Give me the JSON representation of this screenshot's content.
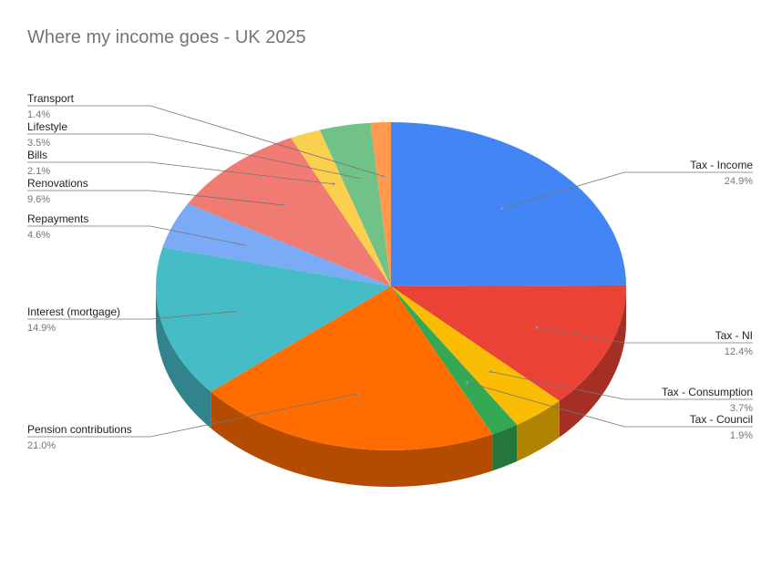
{
  "chart_data": {
    "type": "pie",
    "title": "Where my income goes - UK 2025",
    "three_d": true,
    "slices": [
      {
        "label": "Tax - Income",
        "value": 24.9,
        "pct_label": "24.9%",
        "color": "#4285f4",
        "side": "right"
      },
      {
        "label": "Tax - NI",
        "value": 12.4,
        "pct_label": "12.4%",
        "color": "#ea4335",
        "side": "right"
      },
      {
        "label": "Tax - Consumption",
        "value": 3.7,
        "pct_label": "3.7%",
        "color": "#fbbc04",
        "side": "right"
      },
      {
        "label": "Tax - Council",
        "value": 1.9,
        "pct_label": "1.9%",
        "color": "#34a853",
        "side": "right"
      },
      {
        "label": "Pension contributions",
        "value": 21.0,
        "pct_label": "21.0%",
        "color": "#ff6d01",
        "side": "left"
      },
      {
        "label": "Interest (mortgage)",
        "value": 14.9,
        "pct_label": "14.9%",
        "color": "#46bdc6",
        "side": "left"
      },
      {
        "label": "Repayments",
        "value": 4.6,
        "pct_label": "4.6%",
        "color": "#7baaf7",
        "side": "left"
      },
      {
        "label": "Renovations",
        "value": 9.6,
        "pct_label": "9.6%",
        "color": "#f07b72",
        "side": "left"
      },
      {
        "label": "Bills",
        "value": 2.1,
        "pct_label": "2.1%",
        "color": "#fcd04f",
        "side": "left"
      },
      {
        "label": "Lifestyle",
        "value": 3.5,
        "pct_label": "3.5%",
        "color": "#71c287",
        "side": "left"
      },
      {
        "label": "Transport",
        "value": 1.4,
        "pct_label": "1.4%",
        "color": "#ff994d",
        "side": "left"
      }
    ]
  }
}
